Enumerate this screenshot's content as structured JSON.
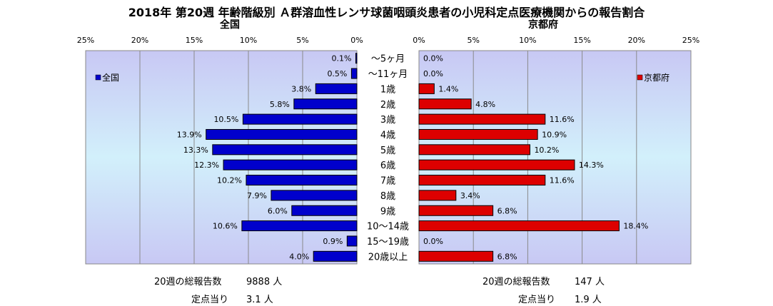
{
  "title": "2018年 第20週 年齢階級別 Ａ群溶血性レンサ球菌咽頭炎患者の小児科定点医療機関からの報告割合",
  "chart_data": {
    "type": "bar",
    "orientation": "horizontal-butterfly",
    "categories": [
      "～5ヶ月",
      "～11ヶ月",
      "1歳",
      "2歳",
      "3歳",
      "4歳",
      "5歳",
      "6歳",
      "7歳",
      "8歳",
      "9歳",
      "10～14歳",
      "15～19歳",
      "20歳以上"
    ],
    "axis_ticks": [
      "25%",
      "20%",
      "15%",
      "10%",
      "5%",
      "0%"
    ],
    "axis_ticks_right": [
      "0%",
      "5%",
      "10%",
      "15%",
      "20%",
      "25%"
    ],
    "xlim": [
      0,
      25
    ],
    "unit": "%",
    "series": [
      {
        "name": "全国",
        "values": [
          0.1,
          0.5,
          3.8,
          5.8,
          10.5,
          13.9,
          13.3,
          12.3,
          10.2,
          7.9,
          6.0,
          10.6,
          0.9,
          4.0
        ],
        "labels": [
          "0.1%",
          "0.5%",
          "3.8%",
          "5.8%",
          "10.5%",
          "13.9%",
          "13.3%",
          "12.3%",
          "10.2%",
          "7.9%",
          "6.0%",
          "10.6%",
          "0.9%",
          "4.0%"
        ],
        "color": "#0000cc",
        "side": "left"
      },
      {
        "name": "京都府",
        "values": [
          0.0,
          0.0,
          1.4,
          4.8,
          11.6,
          10.9,
          10.2,
          14.3,
          11.6,
          3.4,
          6.8,
          18.4,
          0.0,
          6.8
        ],
        "labels": [
          "0.0%",
          "0.0%",
          "1.4%",
          "4.8%",
          "11.6%",
          "10.9%",
          "10.2%",
          "14.3%",
          "11.6%",
          "3.4%",
          "6.8%",
          "18.4%",
          "0.0%",
          "6.8%"
        ],
        "color": "#dd0000",
        "side": "right"
      }
    ],
    "grid": true,
    "legend_left": "全国",
    "legend_right": "京都府"
  },
  "stats": {
    "left": {
      "total_label": "20週の総報告数",
      "total_value": "9888 人",
      "per_label": "定点当り",
      "per_value": "3.1 人"
    },
    "right": {
      "total_label": "20週の総報告数",
      "total_value": "147 人",
      "per_label": "定点当り",
      "per_value": "1.9 人"
    }
  }
}
